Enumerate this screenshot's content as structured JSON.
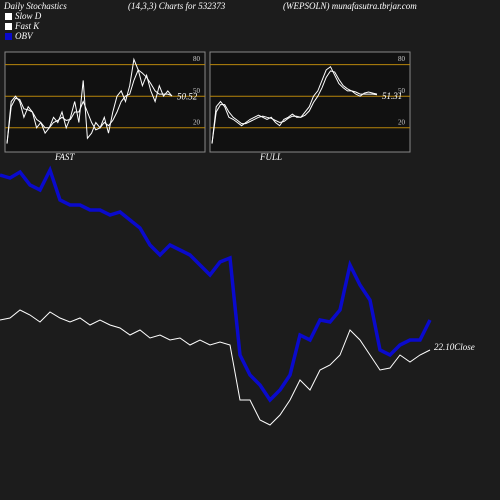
{
  "chart_data": [
    {
      "type": "line",
      "title": "FAST",
      "ylim": [
        -3,
        92
      ],
      "yticks": [
        20,
        50,
        80
      ],
      "grid_color": "#b8860b",
      "series": [
        {
          "name": "Slow D",
          "color": "#ffffff",
          "values": [
            5,
            40,
            48,
            47,
            38,
            37,
            35,
            28,
            25,
            20,
            20,
            25,
            27,
            30,
            27,
            28,
            35,
            35,
            45,
            35,
            25,
            18,
            20,
            25,
            22,
            27,
            35,
            45,
            50,
            52,
            65,
            75,
            72,
            68,
            62,
            55,
            52,
            52,
            52,
            50.52
          ]
        },
        {
          "name": "Fast K",
          "color": "#ffffff",
          "values": [
            5,
            45,
            50,
            45,
            30,
            40,
            35,
            20,
            25,
            15,
            20,
            30,
            25,
            35,
            20,
            30,
            45,
            25,
            65,
            10,
            15,
            25,
            20,
            30,
            15,
            35,
            50,
            55,
            45,
            60,
            85,
            75,
            60,
            70,
            55,
            45,
            60,
            50,
            55,
            50
          ]
        }
      ]
    },
    {
      "type": "line",
      "title": "FULL",
      "ylim": [
        -3,
        92
      ],
      "yticks": [
        20,
        50,
        80
      ],
      "grid_color": "#b8860b",
      "series": [
        {
          "color": "#ffffff",
          "values": [
            5,
            35,
            42,
            42,
            35,
            30,
            27,
            24,
            24,
            26,
            28,
            30,
            31,
            30,
            29,
            27,
            25,
            26,
            29,
            31,
            31,
            30,
            32,
            36,
            44,
            50,
            58,
            68,
            74,
            73,
            66,
            60,
            57,
            55,
            54,
            52,
            52,
            52,
            52,
            51.31
          ]
        },
        {
          "color": "#ffffff",
          "values": [
            5,
            40,
            45,
            40,
            30,
            28,
            25,
            22,
            25,
            28,
            30,
            32,
            30,
            28,
            30,
            25,
            22,
            28,
            30,
            33,
            30,
            30,
            35,
            40,
            50,
            55,
            65,
            75,
            78,
            70,
            62,
            58,
            55,
            55,
            52,
            50,
            53,
            54,
            53,
            52
          ]
        }
      ]
    },
    {
      "type": "line",
      "title": "Daily Stochastics",
      "subtitle": "(14,3,3) Charts for 532373",
      "source": "(WEPSOLN) munafasutra.tbrjar.com",
      "annotation": "22.10Close",
      "series": [
        {
          "name": "OBV",
          "color": "#0a0acc",
          "values": [
            325,
            322,
            328,
            315,
            310,
            330,
            300,
            295,
            295,
            290,
            290,
            285,
            288,
            280,
            272,
            255,
            245,
            255,
            250,
            245,
            235,
            225,
            238,
            242,
            145,
            125,
            115,
            100,
            110,
            125,
            165,
            160,
            180,
            178,
            190,
            235,
            215,
            200,
            150,
            145,
            155,
            160,
            160,
            180
          ]
        },
        {
          "color": "#ffffff",
          "values": [
            23.0,
            23.06,
            23.3,
            23.15,
            22.94,
            23.24,
            23.06,
            22.94,
            23.06,
            22.85,
            23.0,
            22.85,
            22.76,
            22.55,
            22.7,
            22.46,
            22.55,
            22.4,
            22.46,
            22.25,
            22.4,
            22.25,
            22.34,
            22.25,
            20.6,
            20.6,
            20.0,
            19.85,
            20.15,
            20.6,
            21.2,
            20.9,
            21.5,
            21.65,
            21.95,
            22.7,
            22.4,
            21.95,
            21.5,
            21.56,
            21.95,
            21.74,
            21.95,
            22.1
          ]
        }
      ]
    }
  ]
}
